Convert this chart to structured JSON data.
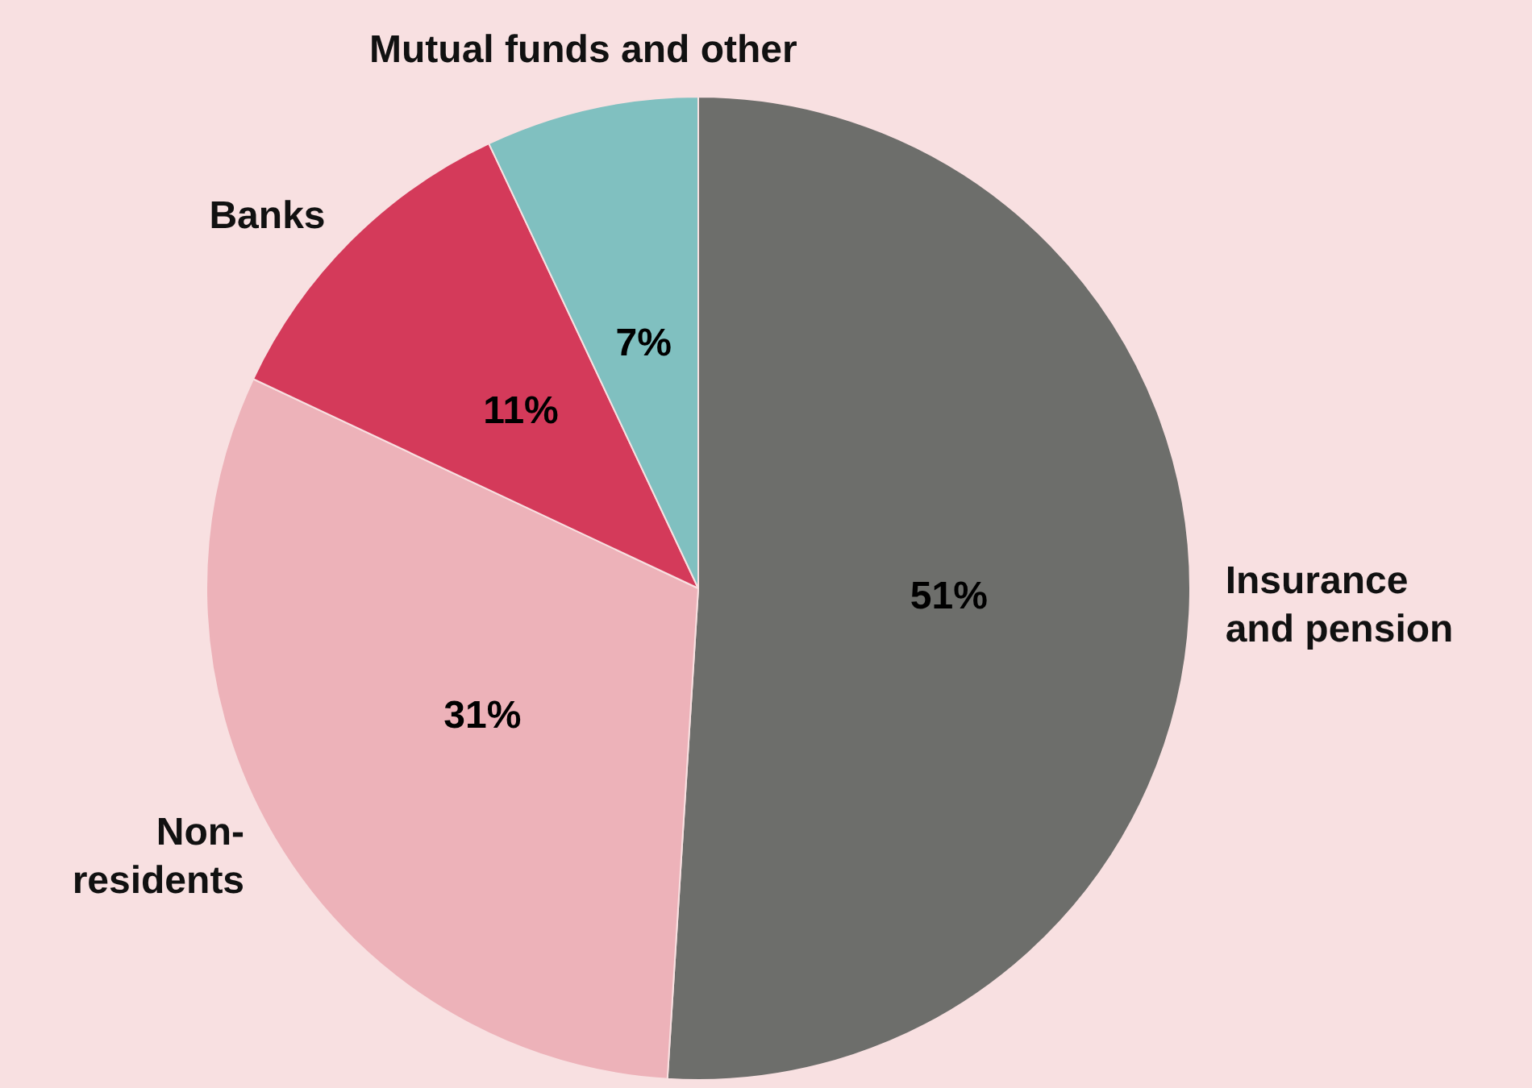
{
  "chart_data": {
    "type": "pie",
    "categories": [
      "Insurance and pension",
      "Non-residents",
      "Banks",
      "Mutual funds and other"
    ],
    "values": [
      51,
      31,
      11,
      7
    ],
    "value_labels": [
      "51%",
      "31%",
      "11%",
      "7%"
    ],
    "colors": [
      "#6d6e6b",
      "#edb2b9",
      "#d43a5a",
      "#80c0c0"
    ],
    "legend": false
  }
}
